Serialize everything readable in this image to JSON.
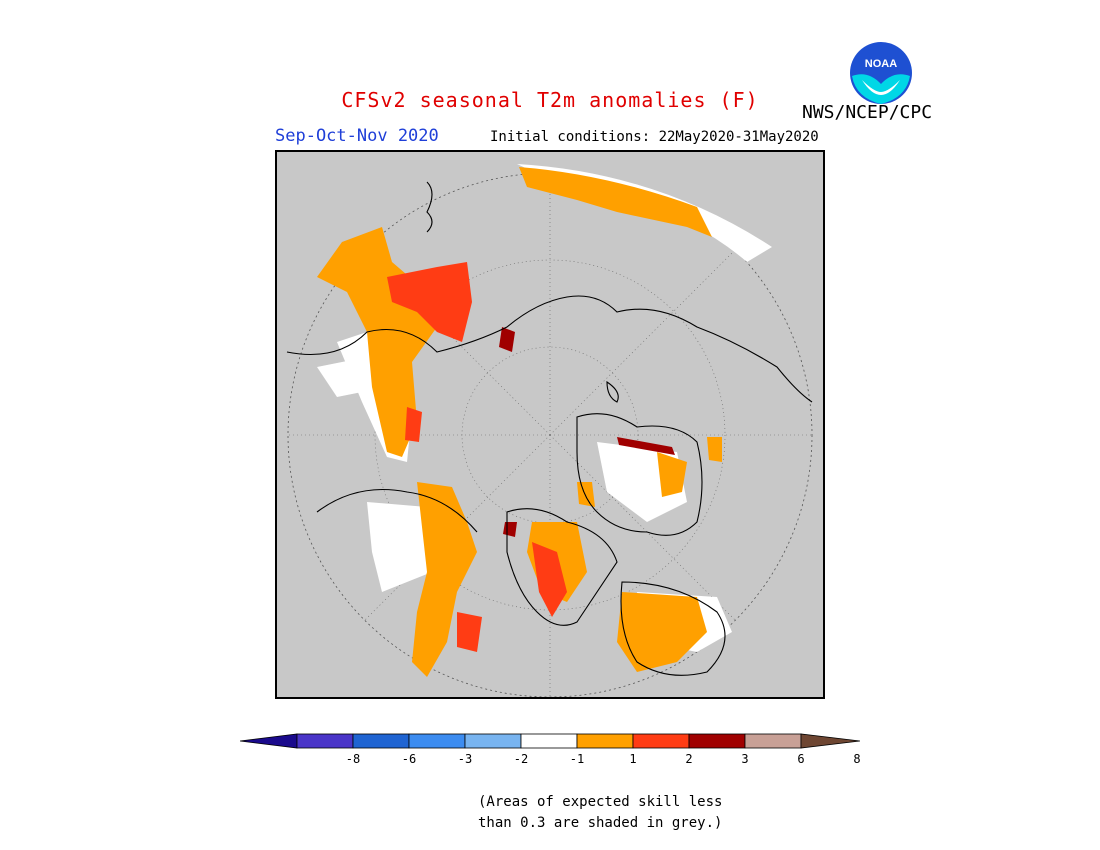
{
  "header": {
    "title": "CFSv2 seasonal T2m anomalies (F)",
    "season": "Sep-Oct-Nov 2020",
    "initial_conditions": "Initial conditions: 22May2020-31May2020",
    "agency": "NWS/NCEP/CPC",
    "logo_text": "NOAA"
  },
  "map": {
    "projection": "north polar stereographic",
    "background_color_meaning": "skill < 0.3 (grey)",
    "grey": "#c8c8c8"
  },
  "colorbar": {
    "colors": [
      "#1a0a8c",
      "#4a35c8",
      "#1f64d2",
      "#3c8cf0",
      "#78b4f0",
      "#ffffff",
      "#ffa000",
      "#ff3c14",
      "#a00000",
      "#c8a096",
      "#6e4632"
    ],
    "tick_labels": [
      "-8",
      "-6",
      "-3",
      "-2",
      "-1",
      "1",
      "2",
      "3",
      "6",
      "8"
    ]
  },
  "note": {
    "line1": "(Areas of expected skill less",
    "line2": "than 0.3 are shaded in grey.)"
  }
}
